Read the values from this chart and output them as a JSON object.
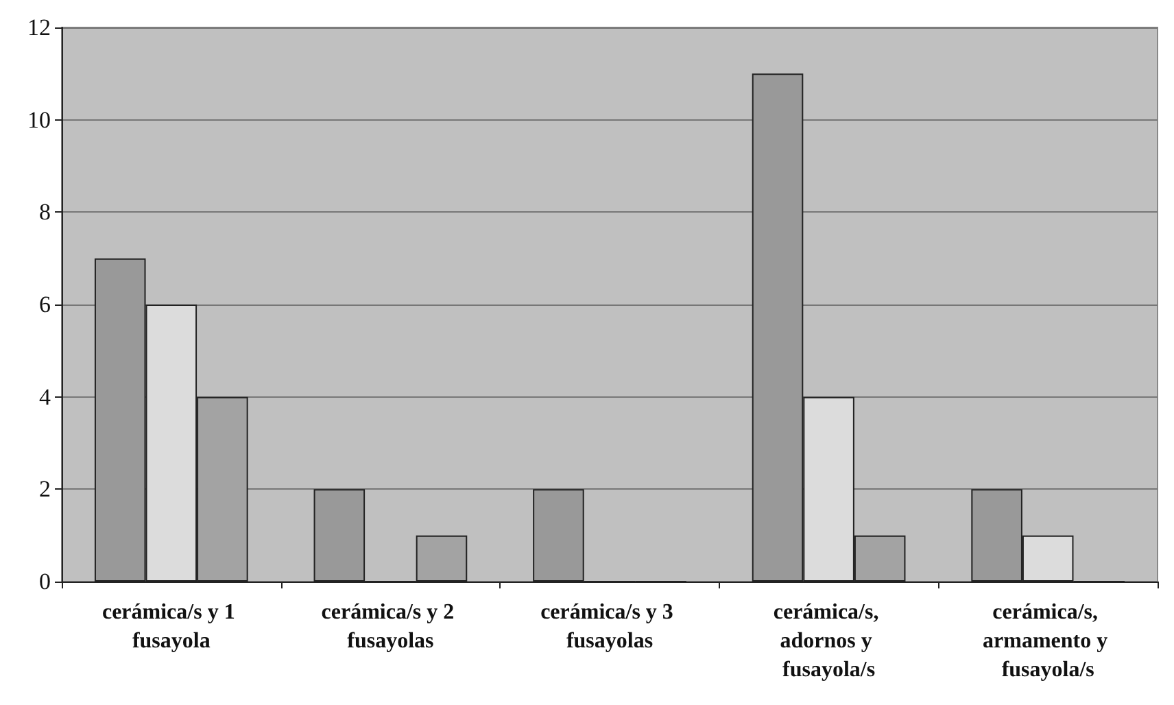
{
  "chart_data": {
    "type": "bar",
    "categories": [
      "cerámica/s y 1 fusayola",
      "cerámica/s y 2 fusayolas",
      "cerámica/s y 3 fusayolas",
      "cerámica/s, adornos y fusayola/s",
      "cerámica/s, armamento y fusayola/s"
    ],
    "series": [
      {
        "color": "#999999",
        "values": [
          7,
          2,
          2,
          11,
          2
        ]
      },
      {
        "color": "#dcdcdc",
        "values": [
          6,
          0,
          0,
          4,
          1
        ]
      },
      {
        "color": "#a3a3a3",
        "values": [
          4,
          1,
          0,
          1,
          0
        ]
      }
    ],
    "ylim": [
      0,
      12
    ],
    "yticks": [
      0,
      2,
      4,
      6,
      8,
      10,
      12
    ],
    "grid": "y"
  }
}
